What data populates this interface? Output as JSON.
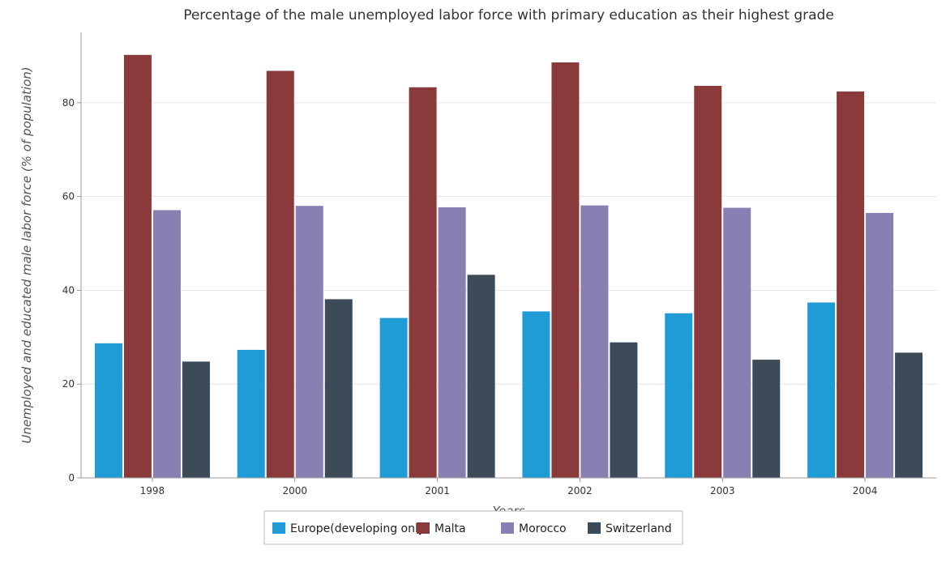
{
  "chart_data": {
    "type": "bar",
    "title": "Percentage of the male unemployed labor force with primary education as their highest grade",
    "xlabel": "Years",
    "ylabel": "Unemployed and educated male labor force (% of population)",
    "categories": [
      "1998",
      "2000",
      "2001",
      "2002",
      "2003",
      "2004"
    ],
    "ylim": [
      0,
      95
    ],
    "yticks": [
      0,
      20,
      40,
      60,
      80
    ],
    "grid": true,
    "legend_position": "bottom",
    "series": [
      {
        "name": "Europe(developing only)",
        "color": "#1f9bd6",
        "values": [
          28.7,
          27.3,
          34.1,
          35.5,
          35.1,
          37.4
        ]
      },
      {
        "name": "Malta",
        "color": "#8a3a3a",
        "values": [
          90.2,
          86.8,
          83.3,
          88.6,
          83.6,
          82.4
        ]
      },
      {
        "name": "Morocco",
        "color": "#8a7fb3",
        "values": [
          57.1,
          58.0,
          57.7,
          58.1,
          57.6,
          56.5
        ]
      },
      {
        "name": "Switzerland",
        "color": "#3d4a57",
        "values": [
          24.8,
          38.1,
          43.3,
          28.9,
          25.2,
          26.7
        ]
      }
    ]
  }
}
